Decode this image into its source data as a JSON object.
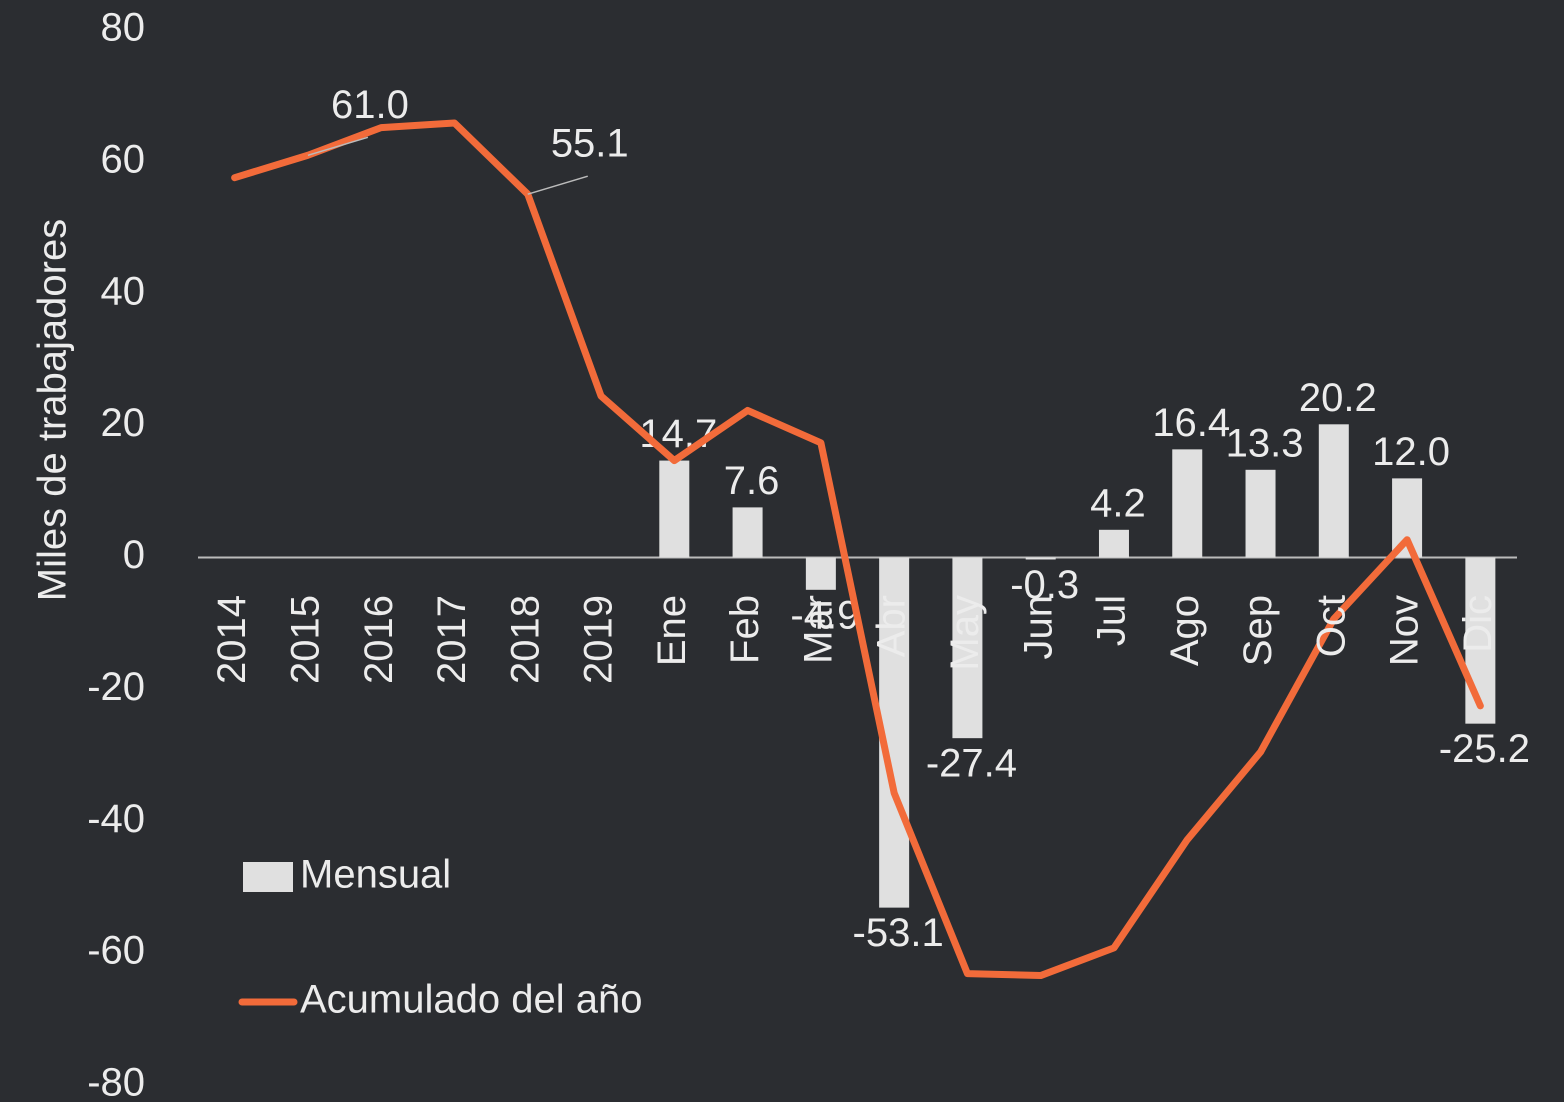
{
  "chart_data": {
    "type": "bar-line",
    "y_axis_label": "Miles de trabajadores",
    "categories": [
      "2014",
      "2015",
      "2016",
      "2017",
      "2018",
      "2019",
      "Ene",
      "Feb",
      "Mar",
      "Abr",
      "May",
      "Jun",
      "Jul",
      "Ago",
      "Sep",
      "Oct",
      "Nov",
      "Dic"
    ],
    "series": [
      {
        "name": "Mensual",
        "type": "bar",
        "color": "#e0e0e0",
        "values": [
          null,
          null,
          null,
          null,
          null,
          null,
          14.7,
          7.6,
          -4.9,
          -53.1,
          -27.4,
          -0.3,
          4.2,
          16.4,
          13.3,
          20.2,
          12.0,
          -25.2
        ],
        "value_labels": [
          null,
          null,
          null,
          null,
          null,
          null,
          "14.7",
          "7.6",
          "-4.9",
          "-53.1",
          "-27.4",
          "-0.3",
          "4.2",
          "16.4",
          "13.3",
          "20.2",
          "12.0",
          "-25.2"
        ]
      },
      {
        "name": "Acumulado del año",
        "type": "line",
        "color": "#f26b3a",
        "values": [
          57.6,
          61.0,
          65.2,
          65.9,
          55.1,
          24.5,
          14.7,
          22.3,
          17.4,
          -35.7,
          -63.1,
          -63.4,
          -59.2,
          -42.8,
          -29.5,
          -9.3,
          2.7,
          -22.5
        ],
        "value_labels": [
          null,
          "61.0",
          null,
          null,
          "55.1",
          null,
          null,
          null,
          null,
          null,
          null,
          null,
          null,
          null,
          null,
          null,
          null,
          null
        ]
      }
    ],
    "ylim": [
      -80,
      80
    ],
    "yticks": [
      -80,
      -60,
      -40,
      -20,
      0,
      20,
      40,
      60,
      80
    ],
    "grid": false
  }
}
